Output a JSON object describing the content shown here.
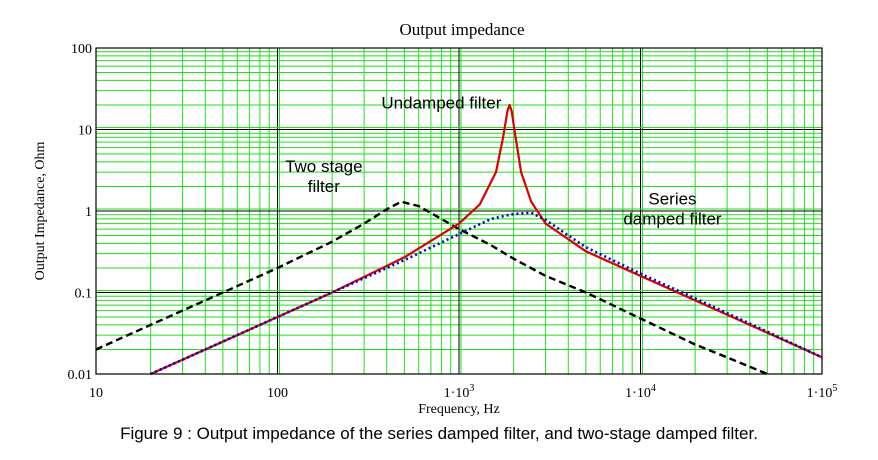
{
  "chart_data": {
    "type": "line",
    "title": "Output impedance",
    "xlabel": "Frequency, Hz",
    "ylabel": "Output Impedance, Ohm",
    "xscale": "log",
    "yscale": "log",
    "xlim": [
      10,
      100000
    ],
    "ylim": [
      0.01,
      100
    ],
    "grid": true,
    "grid_color": "#22dd22",
    "x_ticks": [
      {
        "value": 10,
        "label": "10"
      },
      {
        "value": 100,
        "label": "100"
      },
      {
        "value": 1000,
        "label": "1·10",
        "sup": "3"
      },
      {
        "value": 10000,
        "label": "1·10",
        "sup": "4"
      },
      {
        "value": 100000,
        "label": "1·10",
        "sup": "5"
      }
    ],
    "y_ticks": [
      {
        "value": 100,
        "label": "100"
      },
      {
        "value": 10,
        "label": "10"
      },
      {
        "value": 1,
        "label": "1"
      },
      {
        "value": 0.1,
        "label": "0.1"
      },
      {
        "value": 0.01,
        "label": "0.01"
      }
    ],
    "series": [
      {
        "name": "Two stage filter",
        "color": "#000000",
        "style": "dashed",
        "x": [
          10,
          20,
          50,
          100,
          200,
          300,
          400,
          480,
          600,
          800,
          1000,
          1500,
          2000,
          3000,
          5000,
          7000,
          10000,
          20000,
          30000,
          50000
        ],
        "y": [
          0.02,
          0.04,
          0.1,
          0.2,
          0.42,
          0.7,
          1.05,
          1.3,
          1.15,
          0.8,
          0.6,
          0.38,
          0.26,
          0.16,
          0.1,
          0.07,
          0.048,
          0.023,
          0.016,
          0.01
        ]
      },
      {
        "name": "Undamped filter",
        "color": "#dd0000",
        "style": "solid",
        "x": [
          20,
          50,
          100,
          200,
          500,
          1000,
          1300,
          1600,
          1750,
          1850,
          1900,
          1950,
          2050,
          2200,
          2500,
          3000,
          5000,
          10000,
          20000,
          50000,
          100000
        ],
        "y": [
          0.01,
          0.025,
          0.05,
          0.1,
          0.27,
          0.7,
          1.2,
          3.0,
          8.0,
          17.0,
          20.0,
          17.0,
          8.0,
          3.0,
          1.3,
          0.7,
          0.32,
          0.16,
          0.08,
          0.032,
          0.016
        ]
      },
      {
        "name": "Series damped filter",
        "color": "#0000cc",
        "style": "dotted",
        "x": [
          20,
          50,
          100,
          200,
          500,
          1000,
          1500,
          2000,
          2500,
          3000,
          4000,
          5000,
          10000,
          20000,
          50000,
          100000
        ],
        "y": [
          0.01,
          0.025,
          0.05,
          0.1,
          0.25,
          0.52,
          0.8,
          0.92,
          0.95,
          0.78,
          0.5,
          0.36,
          0.17,
          0.085,
          0.033,
          0.016
        ]
      }
    ],
    "annotations": [
      {
        "text": "Undamped filter",
        "lines": [
          "Undamped filter"
        ],
        "x": 800,
        "y": 18
      },
      {
        "text": "Two stage filter",
        "lines": [
          "Two stage",
          "filter"
        ],
        "x": 180,
        "y": 3.0
      },
      {
        "text": "Series damped filter",
        "lines": [
          "Series",
          "damped filter"
        ],
        "x": 15000,
        "y": 1.2
      }
    ]
  },
  "caption": "Figure 9 : Output impedance of the series damped filter, and two-stage damped filter."
}
